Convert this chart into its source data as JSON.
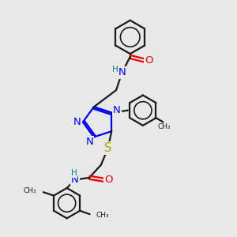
{
  "bg_color": "#e8e8e8",
  "bond_color": "#1a1a1a",
  "N_color": "#0000ee",
  "O_color": "#ee0000",
  "S_color": "#aaaa00",
  "H_color": "#008080",
  "figsize": [
    3.0,
    3.0
  ],
  "dpi": 100,
  "xlim": [
    0,
    10
  ],
  "ylim": [
    0,
    10
  ]
}
